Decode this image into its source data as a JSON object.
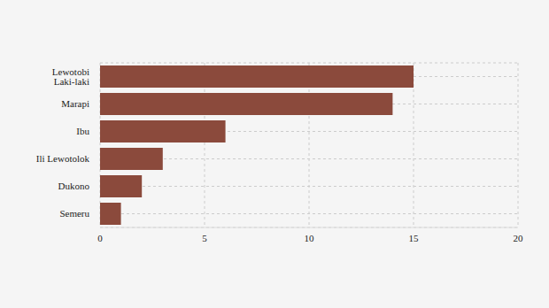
{
  "chart_data": {
    "type": "bar",
    "orientation": "horizontal",
    "categories": [
      "Lewotobi Laki-laki",
      "Marapi",
      "Ibu",
      "Ili Lewotolok",
      "Dukono",
      "Semeru"
    ],
    "values": [
      15,
      14,
      6,
      3,
      2,
      1
    ],
    "color": "#8b4a3c",
    "xlim": [
      0,
      20
    ],
    "xticks": [
      0,
      5,
      10,
      15,
      20
    ],
    "grid": true
  }
}
